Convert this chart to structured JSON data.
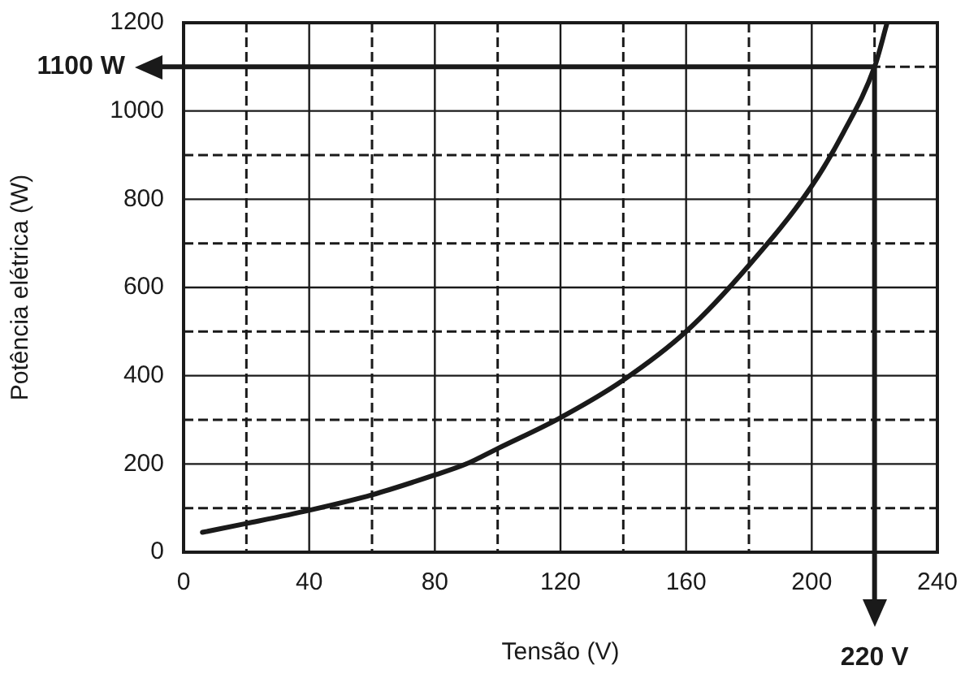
{
  "chart_data": {
    "type": "line",
    "xlabel": "Tensão (V)",
    "ylabel": "Potência elétrica (W)",
    "x": [
      6,
      20,
      40,
      60,
      80,
      90,
      100,
      120,
      140,
      160,
      180,
      200,
      210,
      220,
      224
    ],
    "series": [
      {
        "color": "#1a1a1a",
        "values": [
          45,
          65,
          95,
          130,
          175,
          200,
          235,
          305,
          390,
          500,
          650,
          830,
          950,
          1100,
          1200
        ]
      }
    ],
    "xlim": [
      0,
      240
    ],
    "ylim": [
      0,
      1200
    ],
    "xticks": [
      0,
      {
        "value": 20,
        "label": null
      },
      40,
      {
        "value": 60,
        "label": null
      },
      80,
      {
        "value": 100,
        "label": null
      },
      120,
      {
        "value": 140,
        "label": null
      },
      160,
      {
        "value": 180,
        "label": null
      },
      200,
      {
        "value": 220,
        "label": null
      },
      240
    ],
    "yticks": [
      0,
      {
        "value": 100,
        "label": null
      },
      200,
      {
        "value": 300,
        "label": null
      },
      400,
      {
        "value": 500,
        "label": null
      },
      600,
      {
        "value": 700,
        "label": null
      },
      800,
      {
        "value": 900,
        "label": null
      },
      1000,
      {
        "value": 1100,
        "label": null
      },
      1200
    ],
    "grid": true,
    "legend": false,
    "marker": "none",
    "line_style": "solid",
    "ref_lines": [
      {
        "axis": "y",
        "value": 1100,
        "label": "1100 W",
        "color": "#1a1a1a"
      },
      {
        "axis": "x",
        "value": 220,
        "label": "220 V",
        "color": "#1a1a1a"
      }
    ]
  }
}
